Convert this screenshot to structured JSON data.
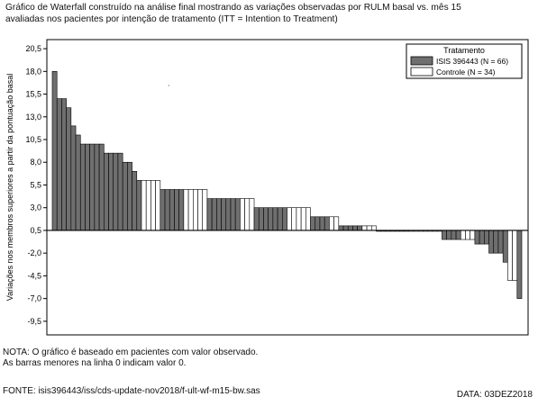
{
  "header": {
    "title_line1": "Gráfico de Waterfall construído na análise final mostrando as variações observadas por  RULM basal vs. mês 15",
    "title_line2": "avaliadas nos pacientes por intenção de tratamento (ITT = Intention to Treatment)"
  },
  "footer": {
    "note_line1": "NOTA: O gráfico é baseado em pacientes com valor observado.",
    "note_line2": "As barras  menores na  linha  0 indicam valor 0.",
    "source": "FONTE: isis396443/iss/cds-update-nov2018/f-ult-wf-m15-bw.sas",
    "date": "DATA: 03DEZ2018"
  },
  "colors": {
    "treatment": "#6f6f6f",
    "control": "#ffffff",
    "outline": "#000000"
  },
  "chart_data": {
    "type": "bar",
    "title": "",
    "xlabel": "",
    "ylabel": "Variações nos membros superiores a partir da pontuação basal",
    "ylim": [
      -11,
      21.5
    ],
    "y_ticks": [
      20.5,
      18.0,
      15.5,
      13.0,
      10.5,
      8.0,
      5.5,
      3.0,
      0.5,
      -2.0,
      -4.5,
      -7.0,
      -9.5
    ],
    "y_tick_labels": [
      "20,5",
      "18,0",
      "15,5",
      "13,0",
      "10,5",
      "8,0",
      "5,5",
      "3,0",
      "0,5",
      "-2,0",
      "-4,5",
      "-7,0",
      "-9,5"
    ],
    "baseline": 0.5,
    "grid": false,
    "legend": {
      "title": "Tratamento",
      "position": "top-right",
      "entries": [
        {
          "label": "ISIS 396443 (N = 66)",
          "group": "T"
        },
        {
          "label": "Controle  (N = 34)",
          "group": "C"
        }
      ]
    },
    "series": [
      {
        "name": "ISIS 396443 (N = 66)",
        "group": "T"
      },
      {
        "name": "Controle  (N = 34)",
        "group": "C"
      }
    ],
    "bars": [
      {
        "value": 18.0,
        "group": "T"
      },
      {
        "value": 15.0,
        "group": "T"
      },
      {
        "value": 15.0,
        "group": "T"
      },
      {
        "value": 14.0,
        "group": "T"
      },
      {
        "value": 12.0,
        "group": "T"
      },
      {
        "value": 11.0,
        "group": "T"
      },
      {
        "value": 10.0,
        "group": "T"
      },
      {
        "value": 10.0,
        "group": "T"
      },
      {
        "value": 10.0,
        "group": "T"
      },
      {
        "value": 10.0,
        "group": "T"
      },
      {
        "value": 10.0,
        "group": "T"
      },
      {
        "value": 9.0,
        "group": "T"
      },
      {
        "value": 9.0,
        "group": "T"
      },
      {
        "value": 9.0,
        "group": "T"
      },
      {
        "value": 9.0,
        "group": "T"
      },
      {
        "value": 8.0,
        "group": "T"
      },
      {
        "value": 8.0,
        "group": "T"
      },
      {
        "value": 7.0,
        "group": "T"
      },
      {
        "value": 6.0,
        "group": "T"
      },
      {
        "value": 6.0,
        "group": "C"
      },
      {
        "value": 6.0,
        "group": "C"
      },
      {
        "value": 6.0,
        "group": "C"
      },
      {
        "value": 6.0,
        "group": "C"
      },
      {
        "value": 5.0,
        "group": "T"
      },
      {
        "value": 5.0,
        "group": "T"
      },
      {
        "value": 5.0,
        "group": "T"
      },
      {
        "value": 5.0,
        "group": "T"
      },
      {
        "value": 5.0,
        "group": "T"
      },
      {
        "value": 5.0,
        "group": "C"
      },
      {
        "value": 5.0,
        "group": "C"
      },
      {
        "value": 5.0,
        "group": "C"
      },
      {
        "value": 5.0,
        "group": "C"
      },
      {
        "value": 5.0,
        "group": "C"
      },
      {
        "value": 4.0,
        "group": "T"
      },
      {
        "value": 4.0,
        "group": "T"
      },
      {
        "value": 4.0,
        "group": "T"
      },
      {
        "value": 4.0,
        "group": "T"
      },
      {
        "value": 4.0,
        "group": "T"
      },
      {
        "value": 4.0,
        "group": "T"
      },
      {
        "value": 4.0,
        "group": "T"
      },
      {
        "value": 4.0,
        "group": "C"
      },
      {
        "value": 4.0,
        "group": "C"
      },
      {
        "value": 4.0,
        "group": "C"
      },
      {
        "value": 3.0,
        "group": "T"
      },
      {
        "value": 3.0,
        "group": "T"
      },
      {
        "value": 3.0,
        "group": "T"
      },
      {
        "value": 3.0,
        "group": "T"
      },
      {
        "value": 3.0,
        "group": "T"
      },
      {
        "value": 3.0,
        "group": "T"
      },
      {
        "value": 3.0,
        "group": "T"
      },
      {
        "value": 3.0,
        "group": "C"
      },
      {
        "value": 3.0,
        "group": "C"
      },
      {
        "value": 3.0,
        "group": "C"
      },
      {
        "value": 3.0,
        "group": "C"
      },
      {
        "value": 3.0,
        "group": "C"
      },
      {
        "value": 2.0,
        "group": "T"
      },
      {
        "value": 2.0,
        "group": "T"
      },
      {
        "value": 2.0,
        "group": "T"
      },
      {
        "value": 2.0,
        "group": "T"
      },
      {
        "value": 2.0,
        "group": "C"
      },
      {
        "value": 2.0,
        "group": "C"
      },
      {
        "value": 1.0,
        "group": "T"
      },
      {
        "value": 1.0,
        "group": "T"
      },
      {
        "value": 1.0,
        "group": "T"
      },
      {
        "value": 1.0,
        "group": "T"
      },
      {
        "value": 1.0,
        "group": "T"
      },
      {
        "value": 1.0,
        "group": "C"
      },
      {
        "value": 1.0,
        "group": "C"
      },
      {
        "value": 1.0,
        "group": "C"
      },
      {
        "value": 0.5,
        "group": "T"
      },
      {
        "value": 0.5,
        "group": "T"
      },
      {
        "value": 0.5,
        "group": "T"
      },
      {
        "value": 0.5,
        "group": "T"
      },
      {
        "value": 0.5,
        "group": "T"
      },
      {
        "value": 0.5,
        "group": "T"
      },
      {
        "value": 0.5,
        "group": "T"
      },
      {
        "value": 0.5,
        "group": "C"
      },
      {
        "value": 0.5,
        "group": "C"
      },
      {
        "value": 0.5,
        "group": "C"
      },
      {
        "value": 0.5,
        "group": "C"
      },
      {
        "value": 0.5,
        "group": "C"
      },
      {
        "value": 0.5,
        "group": "C"
      },
      {
        "value": 0.5,
        "group": "C"
      },
      {
        "value": -0.5,
        "group": "T"
      },
      {
        "value": -0.5,
        "group": "T"
      },
      {
        "value": -0.5,
        "group": "T"
      },
      {
        "value": -0.5,
        "group": "T"
      },
      {
        "value": -0.5,
        "group": "C"
      },
      {
        "value": -0.5,
        "group": "C"
      },
      {
        "value": -0.5,
        "group": "C"
      },
      {
        "value": -1.0,
        "group": "T"
      },
      {
        "value": -1.0,
        "group": "T"
      },
      {
        "value": -1.0,
        "group": "T"
      },
      {
        "value": -2.0,
        "group": "T"
      },
      {
        "value": -2.0,
        "group": "T"
      },
      {
        "value": -2.0,
        "group": "T"
      },
      {
        "value": -3.0,
        "group": "T"
      },
      {
        "value": -5.0,
        "group": "C"
      },
      {
        "value": -5.0,
        "group": "C"
      },
      {
        "value": -7.0,
        "group": "T"
      }
    ]
  }
}
